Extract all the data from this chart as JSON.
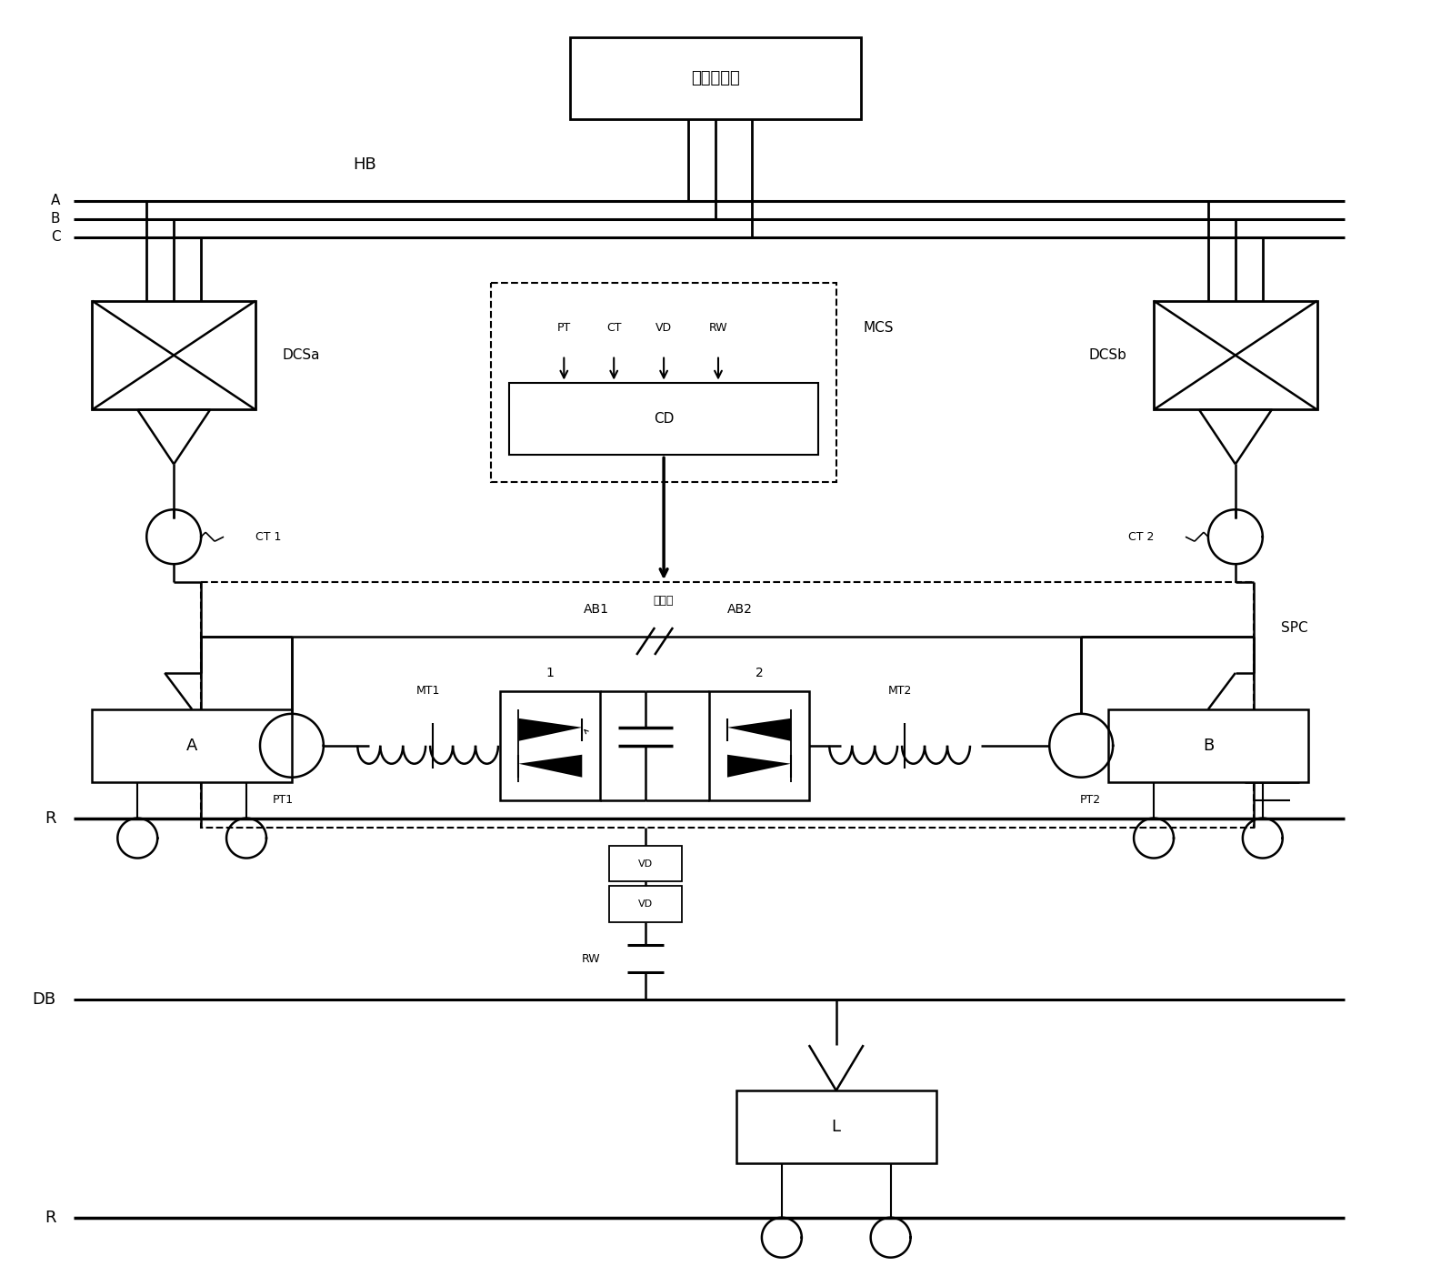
{
  "background": "#ffffff",
  "figsize": [
    15.74,
    14.03
  ],
  "dpi": 100,
  "labels": {
    "substation": "电网变电站",
    "HB": "HB",
    "A": "A",
    "B": "B",
    "C": "C",
    "DCSa": "DCSa",
    "DCSb": "DCSb",
    "MCS": "MCS",
    "CD": "CD",
    "PT": "PT",
    "CT": "CT",
    "VD": "VD",
    "RW": "RW",
    "SPC": "SPC",
    "AB1": "AB1",
    "fenqusu": "分区所",
    "AB2": "AB2",
    "MT1": "MT1",
    "MT2": "MT2",
    "PT1": "PT1",
    "PT2": "PT2",
    "CT1": "CT 1",
    "CT2": "CT 2",
    "n1": "1",
    "n2": "2",
    "VD1": "VD",
    "VD2": "VD",
    "RW_lbl": "RW",
    "DB": "DB",
    "R": "R",
    "trainA": "A",
    "trainB": "B",
    "trainL": "L"
  }
}
